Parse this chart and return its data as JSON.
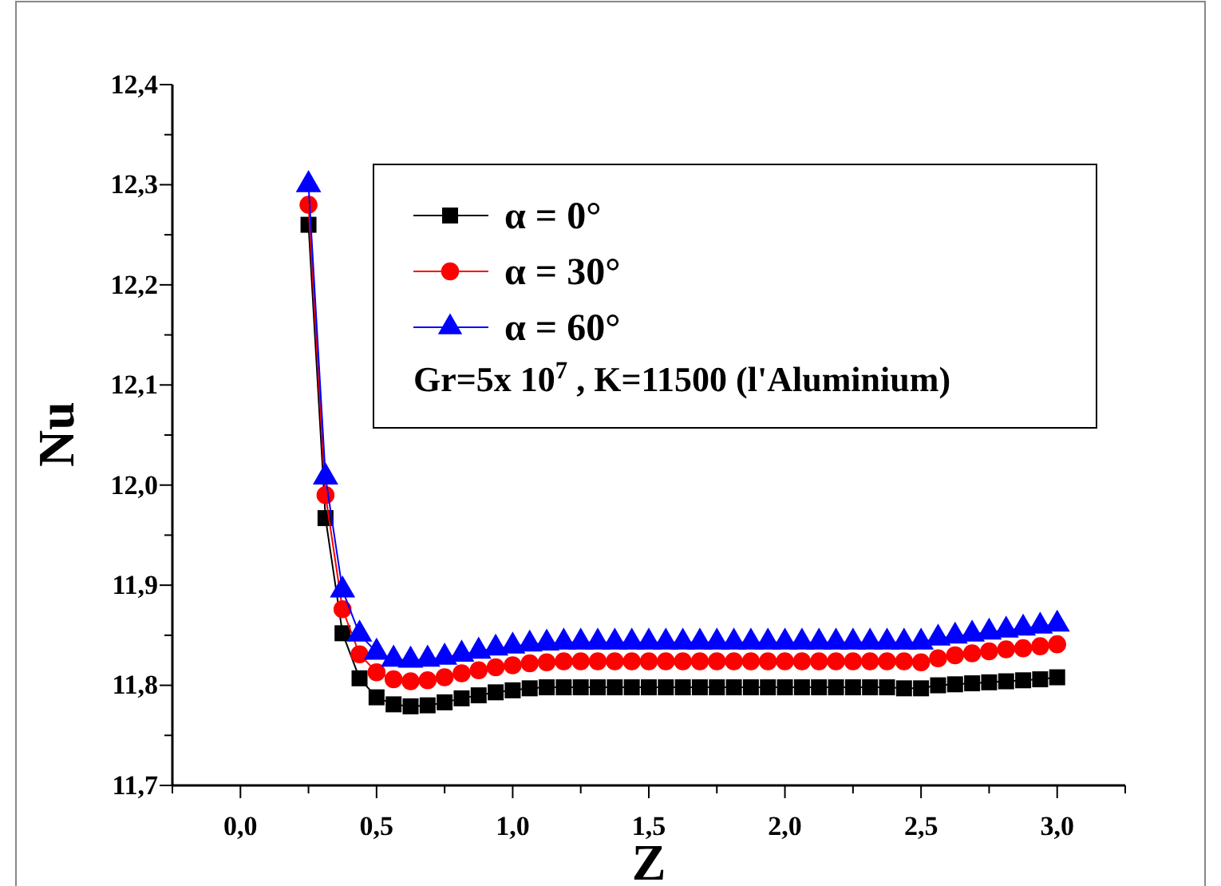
{
  "chart_data": {
    "type": "line",
    "xlabel": "Z",
    "ylabel": "Nu",
    "legend": "top",
    "grid": false,
    "x": [
      0.25,
      0.3125,
      0.375,
      0.4375,
      0.5,
      0.5625,
      0.625,
      0.6875,
      0.75,
      0.8125,
      0.875,
      0.9375,
      1,
      1.0625,
      1.125,
      1.1875,
      1.25,
      1.3125,
      1.375,
      1.4375,
      1.5,
      1.5625,
      1.625,
      1.6875,
      1.75,
      1.8125,
      1.875,
      1.9375,
      2,
      2.0625,
      2.125,
      2.1875,
      2.25,
      2.3125,
      2.375,
      2.4375,
      2.5,
      2.5625,
      2.625,
      2.6875,
      2.75,
      2.8125,
      2.875,
      2.9375,
      3
    ],
    "xlim": [
      -0.25,
      3.25
    ],
    "xticks": [
      {
        "value": -0.25,
        "label": null
      },
      {
        "value": 0,
        "label": "0,0"
      },
      {
        "value": 0.25,
        "label": null
      },
      {
        "value": 0.5,
        "label": "0,5"
      },
      {
        "value": 0.75,
        "label": null
      },
      {
        "value": 1,
        "label": "1,0"
      },
      {
        "value": 1.25,
        "label": null
      },
      {
        "value": 1.5,
        "label": "1,5"
      },
      {
        "value": 1.75,
        "label": null
      },
      {
        "value": 2,
        "label": "2,0"
      },
      {
        "value": 2.25,
        "label": null
      },
      {
        "value": 2.5,
        "label": "2,5"
      },
      {
        "value": 2.75,
        "label": null
      },
      {
        "value": 3,
        "label": "3,0"
      },
      {
        "value": 3.25,
        "label": null
      }
    ],
    "ylim": [
      11.7,
      12.4
    ],
    "yticks": [
      {
        "value": 11.7,
        "label": "11,7"
      },
      {
        "value": 11.75,
        "label": null
      },
      {
        "value": 11.8,
        "label": "11,8"
      },
      {
        "value": 11.85,
        "label": null
      },
      {
        "value": 11.9,
        "label": "11,9"
      },
      {
        "value": 11.95,
        "label": null
      },
      {
        "value": 12,
        "label": "12,0"
      },
      {
        "value": 12.05,
        "label": null
      },
      {
        "value": 12.1,
        "label": "12,1"
      },
      {
        "value": 12.15,
        "label": null
      },
      {
        "value": 12.2,
        "label": "12,2"
      },
      {
        "value": 12.25,
        "label": null
      },
      {
        "value": 12.3,
        "label": "12,3"
      },
      {
        "value": 12.35,
        "label": null
      },
      {
        "value": 12.4,
        "label": "12,4"
      }
    ],
    "annotations": [
      "Gr=5x 10$^{7}$ , K=11500 (l'Aluminium)"
    ],
    "series": [
      {
        "name": "α = 0°",
        "color": "#000000",
        "marker": "square",
        "values": [
          12.26,
          11.967,
          11.852,
          11.807,
          11.788,
          11.781,
          11.779,
          11.78,
          11.783,
          11.787,
          11.79,
          11.793,
          11.795,
          11.797,
          11.798,
          11.798,
          11.798,
          11.798,
          11.798,
          11.798,
          11.798,
          11.798,
          11.798,
          11.798,
          11.798,
          11.798,
          11.798,
          11.798,
          11.798,
          11.798,
          11.798,
          11.798,
          11.798,
          11.798,
          11.798,
          11.797,
          11.797,
          11.8,
          11.801,
          11.802,
          11.803,
          11.804,
          11.805,
          11.806,
          11.808
        ]
      },
      {
        "name": "α = 30°",
        "color": "#ff0000",
        "marker": "circle",
        "values": [
          12.28,
          11.99,
          11.876,
          11.831,
          11.813,
          11.806,
          11.804,
          11.805,
          11.808,
          11.812,
          11.815,
          11.818,
          11.82,
          11.822,
          11.823,
          11.824,
          11.824,
          11.824,
          11.824,
          11.824,
          11.824,
          11.824,
          11.824,
          11.824,
          11.824,
          11.824,
          11.824,
          11.824,
          11.824,
          11.824,
          11.824,
          11.824,
          11.824,
          11.824,
          11.824,
          11.824,
          11.823,
          11.827,
          11.83,
          11.832,
          11.834,
          11.836,
          11.837,
          11.839,
          11.841
        ]
      },
      {
        "name": "α = 60°",
        "color": "#0000ff",
        "marker": "triangle",
        "values": [
          12.3,
          12.008,
          11.895,
          11.851,
          11.833,
          11.826,
          11.825,
          11.826,
          11.828,
          11.831,
          11.834,
          11.837,
          11.839,
          11.841,
          11.842,
          11.843,
          11.843,
          11.843,
          11.843,
          11.843,
          11.843,
          11.843,
          11.843,
          11.843,
          11.843,
          11.843,
          11.843,
          11.843,
          11.843,
          11.843,
          11.843,
          11.843,
          11.843,
          11.843,
          11.843,
          11.843,
          11.843,
          11.847,
          11.849,
          11.851,
          11.853,
          11.855,
          11.857,
          11.859,
          11.861
        ]
      }
    ]
  }
}
